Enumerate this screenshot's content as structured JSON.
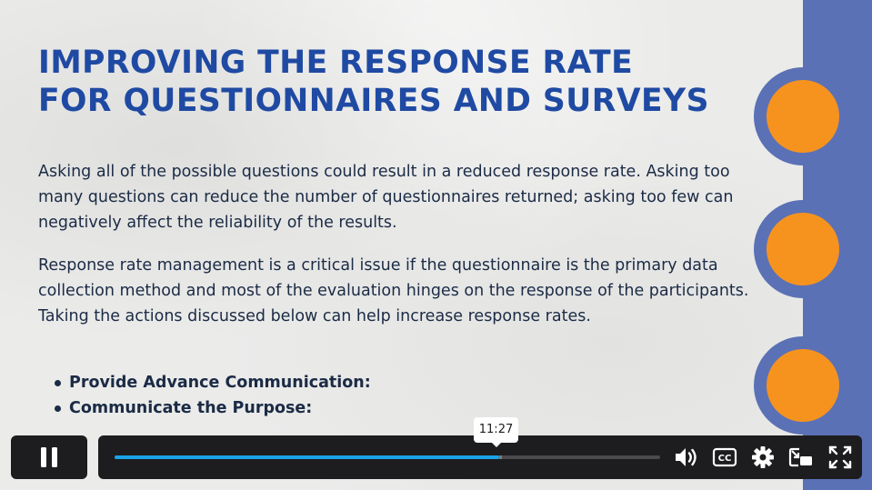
{
  "slide": {
    "title_line1": "Improving the Response Rate",
    "title_line2": "for Questionnaires and Surveys",
    "paragraph1": "Asking all of the possible questions could result in a reduced response rate. Asking too many questions can reduce the number of questionnaires returned; asking too few can negatively affect the reliability of the results.",
    "paragraph2": "Response rate management is a critical issue if the questionnaire is the primary data collection method and most of the evaluation hinges on the response of the participants. Taking the actions discussed below can help increase response rates.",
    "bullets": [
      "Provide Advance Communication:",
      "Communicate the Purpose:"
    ]
  },
  "player": {
    "state": "playing",
    "pause_icon": "pause-icon",
    "hover_time": "11:27",
    "progress_fraction": 0.705,
    "buffered_fraction": 0.71,
    "cc_text": "CC",
    "controls": [
      "volume-icon",
      "captions-icon",
      "settings-icon",
      "picture-in-picture-icon",
      "fullscreen-icon"
    ]
  },
  "colors": {
    "title": "#1f4aa3",
    "accent_blue": "#5b71b5",
    "accent_orange": "#f6931f",
    "progress": "#1aa3e8",
    "control_bg": "#1d1d1f"
  }
}
